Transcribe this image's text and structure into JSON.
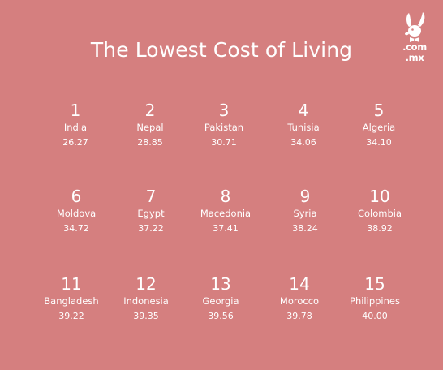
{
  "title": "The Lowest Cost of Living",
  "logo": {
    "line1": ".com",
    "line2": ".mx"
  },
  "items": [
    {
      "rank": "1",
      "country": "India",
      "value": "26.27"
    },
    {
      "rank": "2",
      "country": "Nepal",
      "value": "28.85"
    },
    {
      "rank": "3",
      "country": "Pakistan",
      "value": "30.71"
    },
    {
      "rank": "4",
      "country": "Tunisia",
      "value": "34.06"
    },
    {
      "rank": "5",
      "country": "Algeria",
      "value": "34.10"
    },
    {
      "rank": "6",
      "country": "Moldova",
      "value": "34.72"
    },
    {
      "rank": "7",
      "country": "Egypt",
      "value": "37.22"
    },
    {
      "rank": "8",
      "country": "Macedonia",
      "value": "37.41"
    },
    {
      "rank": "9",
      "country": "Syria",
      "value": "38.24"
    },
    {
      "rank": "10",
      "country": "Colombia",
      "value": "38.92"
    },
    {
      "rank": "11",
      "country": "Bangladesh",
      "value": "39.22"
    },
    {
      "rank": "12",
      "country": "Indonesia",
      "value": "39.35"
    },
    {
      "rank": "13",
      "country": "Georgia",
      "value": "39.56"
    },
    {
      "rank": "14",
      "country": "Morocco",
      "value": "39.78"
    },
    {
      "rank": "15",
      "country": "Philippines",
      "value": "40.00"
    }
  ]
}
